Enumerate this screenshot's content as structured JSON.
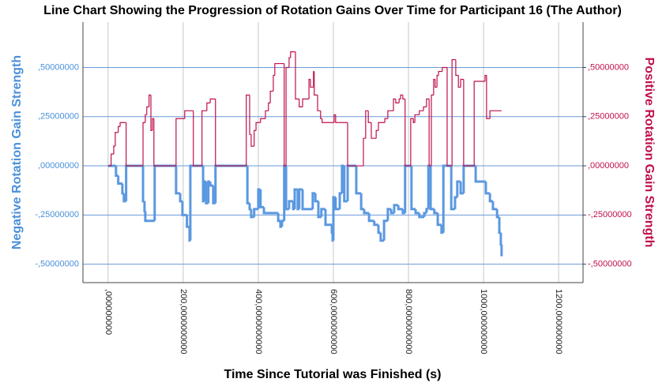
{
  "chart_data": {
    "type": "line",
    "step": "post",
    "title": "Line Chart Showing the Progression of Rotation Gains Over Time for Participant 16 (The Author)",
    "x_label": "Time Since Tutorial was Finished (s)",
    "y_label": "Negative Rotation Gain Strength",
    "y2_label": "Positive Rotation Gain Strength",
    "xlim": [
      -67,
      1265
    ],
    "ylim": [
      -0.594,
      0.731
    ],
    "y2lim": [
      -0.594,
      0.731
    ],
    "xticks": [
      {
        "value": 0,
        "label": ",000000000"
      },
      {
        "value": 200,
        "label": "200,0000000000"
      },
      {
        "value": 400,
        "label": "400,0000000000"
      },
      {
        "value": 600,
        "label": "600,0000000000"
      },
      {
        "value": 800,
        "label": "800,0000000000"
      },
      {
        "value": 1000,
        "label": "1000,000000000"
      },
      {
        "value": 1200,
        "label": "1200,000000000"
      }
    ],
    "yticks": [
      {
        "value": 0.5,
        "label": ",50000000"
      },
      {
        "value": 0.25,
        "label": ",25000000"
      },
      {
        "value": 0,
        "label": ",00000000"
      },
      {
        "value": -0.25,
        "label": "-,25000000"
      },
      {
        "value": -0.5,
        "label": "-,50000000"
      }
    ],
    "y2ticks": [
      {
        "value": 0.5,
        "label": ",50000000"
      },
      {
        "value": 0.25,
        "label": ",25000000"
      },
      {
        "value": 0,
        "label": ",00000000"
      },
      {
        "value": -0.25,
        "label": "-,25000000"
      },
      {
        "value": -0.5,
        "label": "-,50000000"
      }
    ],
    "xgrid": true,
    "ygrid": true,
    "y_color": "#4a90d9",
    "y2_color": "#c0104a",
    "series": [
      {
        "axis": "y",
        "color": "#5a98e0",
        "width": 3,
        "x": [
          0,
          21,
          27,
          38,
          42,
          48,
          93,
          97,
          99,
          124,
          181,
          192,
          198,
          210,
          217,
          219,
          253,
          257,
          261,
          267,
          272,
          280,
          286,
          371,
          377,
          381,
          389,
          400,
          406,
          415,
          453,
          459,
          463,
          469,
          474,
          482,
          493,
          497,
          505,
          509,
          518,
          545,
          552,
          560,
          568,
          579,
          596,
          598,
          600,
          606,
          617,
          623,
          629,
          638,
          661,
          674,
          682,
          695,
          709,
          720,
          726,
          735,
          745,
          754,
          762,
          773,
          785,
          791,
          808,
          819,
          829,
          842,
          848,
          853,
          859,
          869,
          878,
          888,
          893,
          914,
          924,
          930,
          939,
          947,
          979,
          1006,
          1017,
          1025,
          1036,
          1042,
          1046,
          1048
        ],
        "values": [
          0,
          -0.05,
          -0.09,
          -0.14,
          -0.18,
          0,
          -0.18,
          -0.23,
          -0.28,
          0,
          -0.14,
          -0.18,
          -0.25,
          -0.31,
          -0.38,
          0,
          -0.18,
          -0.08,
          -0.19,
          -0.08,
          -0.1,
          -0.19,
          0,
          -0.19,
          -0.22,
          -0.26,
          -0.22,
          -0.12,
          -0.21,
          -0.24,
          -0.28,
          -0.31,
          -0.28,
          0,
          -0.22,
          -0.18,
          -0.22,
          -0.12,
          -0.22,
          -0.12,
          -0.22,
          -0.14,
          -0.18,
          -0.26,
          -0.22,
          -0.3,
          -0.34,
          -0.38,
          -0.16,
          -0.22,
          -0.14,
          0,
          -0.18,
          0,
          -0.14,
          -0.22,
          -0.24,
          -0.28,
          -0.3,
          -0.34,
          -0.38,
          -0.28,
          -0.22,
          -0.24,
          -0.2,
          -0.22,
          -0.24,
          0,
          -0.22,
          -0.24,
          -0.26,
          -0.24,
          -0.22,
          0,
          -0.22,
          -0.24,
          -0.3,
          -0.34,
          0,
          -0.22,
          -0.16,
          -0.08,
          -0.14,
          0,
          -0.08,
          -0.14,
          -0.18,
          -0.22,
          -0.26,
          -0.34,
          -0.4,
          -0.46
        ]
      },
      {
        "axis": "y2",
        "color": "#c0104a",
        "width": 1.2,
        "x": [
          0,
          8,
          15,
          19,
          27,
          32,
          48,
          93,
          99,
          103,
          109,
          114,
          118,
          122,
          181,
          204,
          227,
          250,
          263,
          272,
          286,
          368,
          377,
          381,
          389,
          394,
          406,
          419,
          427,
          432,
          440,
          444,
          469,
          474,
          482,
          486,
          499,
          509,
          518,
          535,
          539,
          547,
          549,
          558,
          566,
          570,
          602,
          606,
          638,
          680,
          686,
          693,
          701,
          714,
          720,
          737,
          745,
          760,
          766,
          775,
          779,
          785,
          791,
          806,
          813,
          817,
          829,
          840,
          848,
          855,
          861,
          867,
          871,
          876,
          880,
          890,
          903,
          916,
          926,
          933,
          939,
          947,
          975,
          1004,
          1008,
          1017,
          1048
        ],
        "values": [
          0,
          0.06,
          0.1,
          0.17,
          0.2,
          0.22,
          0,
          0.22,
          0.26,
          0.3,
          0.36,
          0.18,
          0.24,
          0,
          0.24,
          0.28,
          0,
          0.28,
          0.32,
          0.34,
          0,
          0.36,
          0.16,
          0.1,
          0.18,
          0.22,
          0.24,
          0.28,
          0.32,
          0.38,
          0.46,
          0.52,
          0,
          0.5,
          0.55,
          0.58,
          0.34,
          0.3,
          0.34,
          0.44,
          0.4,
          0.48,
          0.36,
          0.28,
          0.24,
          0.22,
          0.26,
          0.22,
          0,
          0.14,
          0.28,
          0.22,
          0.14,
          0.18,
          0.22,
          0.24,
          0.28,
          0.34,
          0.32,
          0.34,
          0.36,
          0.34,
          0,
          0.24,
          0.22,
          0.26,
          0.28,
          0.3,
          0.34,
          0,
          0.36,
          0.44,
          0.4,
          0.46,
          0.48,
          0.5,
          0,
          0.54,
          0.46,
          0.4,
          0.44,
          0,
          0.43,
          0.46,
          0.24,
          0.28,
          0.28
        ]
      }
    ]
  }
}
